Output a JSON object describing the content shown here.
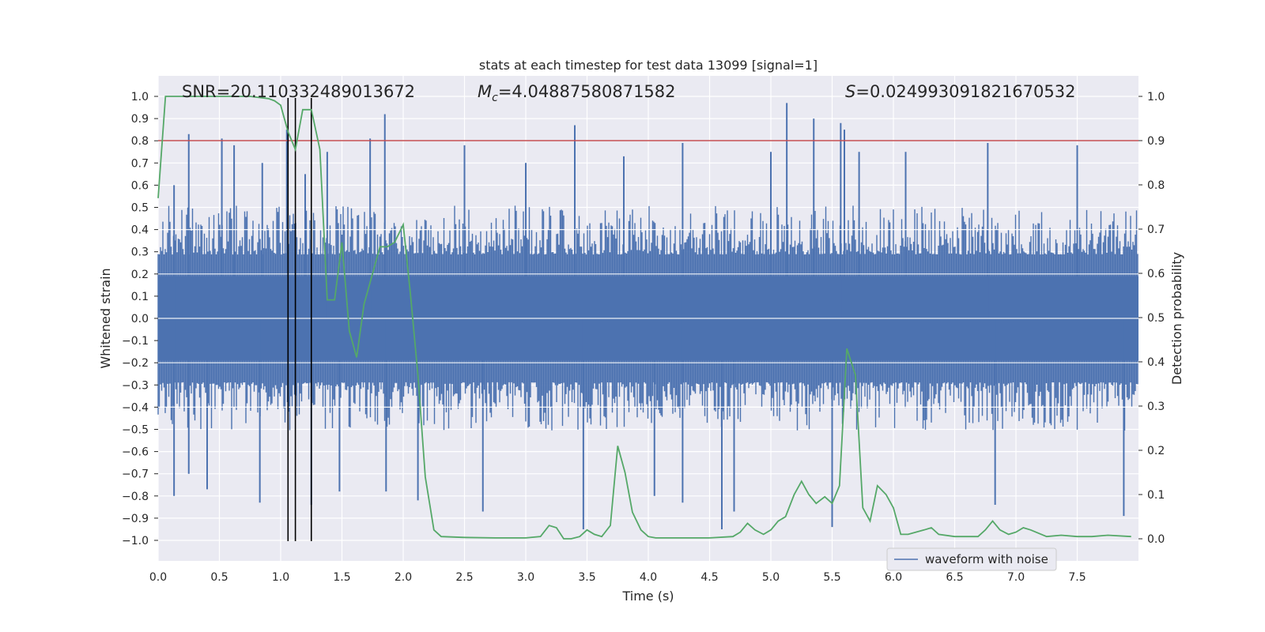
{
  "chart_data": {
    "type": "line",
    "title": "stats at each timestep for test data 13099 [signal=1]",
    "xlabel": "Time (s)",
    "ylabel": "Whitened strain",
    "y2label": "Detection probability",
    "xlim": [
      0.0,
      8.0
    ],
    "ylim": [
      -1.1,
      1.1
    ],
    "y2lim": [
      -0.05,
      1.04
    ],
    "xticks": [
      0.0,
      0.5,
      1.0,
      1.5,
      2.0,
      2.5,
      3.0,
      3.5,
      4.0,
      4.5,
      5.0,
      5.5,
      6.0,
      6.5,
      7.0,
      7.5
    ],
    "xtick_labels": [
      "0.0",
      "0.5",
      "1.0",
      "1.5",
      "2.0",
      "2.5",
      "3.0",
      "3.5",
      "4.0",
      "4.5",
      "5.0",
      "5.5",
      "6.0",
      "6.5",
      "7.0",
      "7.5"
    ],
    "yticks": [
      1.0,
      0.9,
      0.8,
      0.7,
      0.6,
      0.5,
      0.4,
      0.3,
      0.2,
      0.1,
      0.0,
      -0.1,
      -0.2,
      -0.3,
      -0.4,
      -0.5,
      -0.6,
      -0.7,
      -0.8,
      -0.9,
      -1.0
    ],
    "ytick_labels": [
      "1.0",
      "0.9",
      "0.8",
      "0.7",
      "0.6",
      "0.5",
      "0.4",
      "0.3",
      "0.2",
      "0.1",
      "0.0",
      "−0.1",
      "−0.2",
      "−0.3",
      "−0.4",
      "−0.5",
      "−0.6",
      "−0.7",
      "−0.8",
      "−0.9",
      "−1.0"
    ],
    "y2ticks": [
      1.0,
      0.9,
      0.8,
      0.7,
      0.6,
      0.5,
      0.4,
      0.3,
      0.2,
      0.1,
      0.0
    ],
    "y2tick_labels": [
      "1.0",
      "0.9",
      "0.8",
      "0.7",
      "0.6",
      "0.5",
      "0.4",
      "0.3",
      "0.2",
      "0.1",
      "0.0"
    ],
    "annotations": {
      "snr": "SNR=20.110332489013672",
      "mc_symbol": "M",
      "mc_sub": "c",
      "mc_value": "=4.04887580871582",
      "s_symbol": "S",
      "s_value": "=0.024993091821670532"
    },
    "legend": {
      "label": "waveform with noise",
      "location": "lower-right"
    },
    "threshold_line": {
      "y2": 0.9,
      "color": "#c44e52"
    },
    "event_markers_x": [
      1.06,
      1.12,
      1.25
    ],
    "series": [
      {
        "name": "waveform with noise",
        "axis": "left",
        "color": "#4c72b0",
        "kind": "noise-band",
        "x_range": [
          0.0,
          8.0
        ],
        "typical_envelope": 0.4,
        "peaks": [
          {
            "x": 0.13,
            "y": 0.6
          },
          {
            "x": 0.13,
            "y": -0.8
          },
          {
            "x": 0.25,
            "y": 0.83
          },
          {
            "x": 0.25,
            "y": -0.7
          },
          {
            "x": 0.4,
            "y": -0.77
          },
          {
            "x": 0.52,
            "y": 0.81
          },
          {
            "x": 0.62,
            "y": 0.78
          },
          {
            "x": 0.83,
            "y": -0.83
          },
          {
            "x": 0.85,
            "y": 0.7
          },
          {
            "x": 1.05,
            "y": 0.85
          },
          {
            "x": 1.2,
            "y": 0.65
          },
          {
            "x": 1.25,
            "y": -0.84
          },
          {
            "x": 1.38,
            "y": 0.75
          },
          {
            "x": 1.48,
            "y": -0.78
          },
          {
            "x": 1.73,
            "y": 0.81
          },
          {
            "x": 1.85,
            "y": 0.92
          },
          {
            "x": 1.86,
            "y": -0.78
          },
          {
            "x": 2.12,
            "y": -0.82
          },
          {
            "x": 2.5,
            "y": 0.78
          },
          {
            "x": 2.65,
            "y": -0.87
          },
          {
            "x": 3.0,
            "y": 0.7
          },
          {
            "x": 3.4,
            "y": 0.87
          },
          {
            "x": 3.47,
            "y": -0.95
          },
          {
            "x": 3.8,
            "y": 0.73
          },
          {
            "x": 4.05,
            "y": -0.8
          },
          {
            "x": 4.28,
            "y": 0.79
          },
          {
            "x": 4.28,
            "y": -0.83
          },
          {
            "x": 4.6,
            "y": -0.95
          },
          {
            "x": 4.7,
            "y": -0.87
          },
          {
            "x": 5.0,
            "y": 0.75
          },
          {
            "x": 5.13,
            "y": 0.97
          },
          {
            "x": 5.35,
            "y": 0.9
          },
          {
            "x": 5.5,
            "y": -0.94
          },
          {
            "x": 5.57,
            "y": 0.88
          },
          {
            "x": 5.6,
            "y": 0.85
          },
          {
            "x": 5.72,
            "y": 0.75
          },
          {
            "x": 6.1,
            "y": 0.75
          },
          {
            "x": 6.77,
            "y": 0.79
          },
          {
            "x": 6.83,
            "y": -0.84
          },
          {
            "x": 7.5,
            "y": 0.78
          },
          {
            "x": 7.88,
            "y": -0.89
          }
        ]
      },
      {
        "name": "detection probability",
        "axis": "right",
        "color": "#55a868",
        "x": [
          0.0,
          0.06,
          0.12,
          0.25,
          0.5,
          0.75,
          0.9,
          0.95,
          1.0,
          1.06,
          1.12,
          1.18,
          1.25,
          1.32,
          1.38,
          1.44,
          1.5,
          1.56,
          1.62,
          1.68,
          1.75,
          1.81,
          1.87,
          1.93,
          2.0,
          2.06,
          2.12,
          2.18,
          2.25,
          2.31,
          2.5,
          2.75,
          3.0,
          3.12,
          3.19,
          3.25,
          3.31,
          3.37,
          3.44,
          3.5,
          3.56,
          3.62,
          3.69,
          3.75,
          3.81,
          3.87,
          3.94,
          4.0,
          4.06,
          4.12,
          4.25,
          4.5,
          4.69,
          4.75,
          4.81,
          4.87,
          4.94,
          5.0,
          5.06,
          5.12,
          5.19,
          5.25,
          5.31,
          5.37,
          5.44,
          5.5,
          5.56,
          5.62,
          5.69,
          5.75,
          5.81,
          5.87,
          5.94,
          6.0,
          6.06,
          6.12,
          6.25,
          6.31,
          6.37,
          6.5,
          6.62,
          6.69,
          6.75,
          6.81,
          6.87,
          6.94,
          7.0,
          7.06,
          7.12,
          7.25,
          7.37,
          7.5,
          7.62,
          7.75,
          7.94
        ],
        "y": [
          0.77,
          1.0,
          1.0,
          1.0,
          1.0,
          1.0,
          0.995,
          0.99,
          0.98,
          0.92,
          0.88,
          0.97,
          0.97,
          0.88,
          0.54,
          0.54,
          0.67,
          0.47,
          0.41,
          0.53,
          0.6,
          0.66,
          0.66,
          0.67,
          0.71,
          0.55,
          0.37,
          0.14,
          0.02,
          0.005,
          0.003,
          0.002,
          0.002,
          0.005,
          0.03,
          0.025,
          0.0,
          0.0,
          0.005,
          0.02,
          0.01,
          0.005,
          0.03,
          0.21,
          0.15,
          0.06,
          0.02,
          0.005,
          0.002,
          0.002,
          0.002,
          0.002,
          0.005,
          0.015,
          0.035,
          0.02,
          0.01,
          0.02,
          0.04,
          0.05,
          0.1,
          0.13,
          0.1,
          0.08,
          0.095,
          0.08,
          0.12,
          0.43,
          0.37,
          0.07,
          0.04,
          0.12,
          0.1,
          0.07,
          0.01,
          0.01,
          0.02,
          0.025,
          0.01,
          0.005,
          0.005,
          0.005,
          0.02,
          0.04,
          0.02,
          0.01,
          0.015,
          0.025,
          0.02,
          0.005,
          0.008,
          0.005,
          0.005,
          0.008,
          0.005
        ]
      }
    ]
  }
}
